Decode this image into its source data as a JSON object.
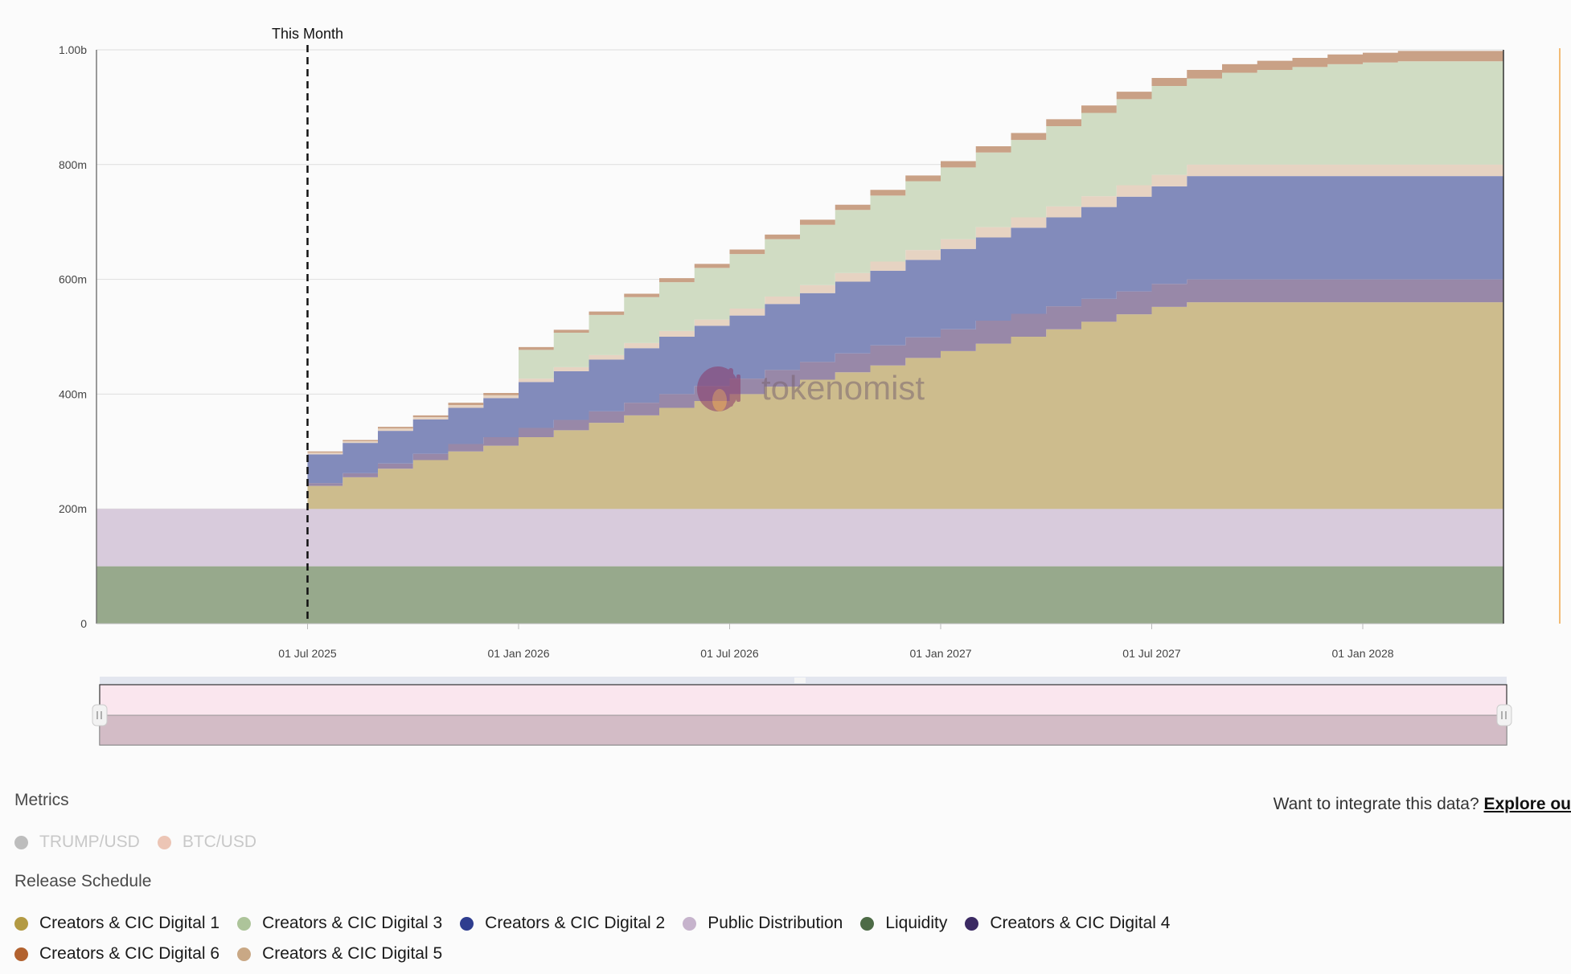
{
  "chart_data": {
    "type": "area",
    "stacked": true,
    "y_tick_labels": [
      "0",
      "200m",
      "400m",
      "600m",
      "800m",
      "1.00b"
    ],
    "ylim": [
      0,
      1000
    ],
    "x_tick_labels": [
      "01 Jul 2025",
      "01 Jan 2026",
      "01 Jul 2026",
      "01 Jan 2027",
      "01 Jul 2027",
      "01 Jan 2028"
    ],
    "annotation": "This Month",
    "annotation_index": 6,
    "months": [
      "2025-01",
      "2025-02",
      "2025-03",
      "2025-04",
      "2025-05",
      "2025-06",
      "2025-07",
      "2025-08",
      "2025-09",
      "2025-10",
      "2025-11",
      "2025-12",
      "2026-01",
      "2026-02",
      "2026-03",
      "2026-04",
      "2026-05",
      "2026-06",
      "2026-07",
      "2026-08",
      "2026-09",
      "2026-10",
      "2026-11",
      "2026-12",
      "2027-01",
      "2027-02",
      "2027-03",
      "2027-04",
      "2027-05",
      "2027-06",
      "2027-07",
      "2027-08",
      "2027-09",
      "2027-10",
      "2027-11",
      "2027-12",
      "2028-01",
      "2028-02",
      "2028-03",
      "2028-04"
    ],
    "series": [
      {
        "name": "Liquidity",
        "color": "#97a98c",
        "values": [
          100,
          100,
          100,
          100,
          100,
          100,
          100,
          100,
          100,
          100,
          100,
          100,
          100,
          100,
          100,
          100,
          100,
          100,
          100,
          100,
          100,
          100,
          100,
          100,
          100,
          100,
          100,
          100,
          100,
          100,
          100,
          100,
          100,
          100,
          100,
          100,
          100,
          100,
          100,
          100
        ]
      },
      {
        "name": "Public Distribution",
        "color": "#d8cbdc",
        "values": [
          100,
          100,
          100,
          100,
          100,
          100,
          100,
          100,
          100,
          100,
          100,
          100,
          100,
          100,
          100,
          100,
          100,
          100,
          100,
          100,
          100,
          100,
          100,
          100,
          100,
          100,
          100,
          100,
          100,
          100,
          100,
          100,
          100,
          100,
          100,
          100,
          100,
          100,
          100,
          100
        ]
      },
      {
        "name": "Creators & CIC Digital 1",
        "color": "#cdbc8d",
        "values": [
          0,
          0,
          0,
          0,
          0,
          0,
          40,
          55,
          70,
          85,
          100,
          110,
          125,
          137,
          150,
          163,
          176,
          188,
          200,
          213,
          225,
          238,
          250,
          263,
          275,
          288,
          300,
          313,
          326,
          339,
          352,
          360,
          360,
          360,
          360,
          360,
          360,
          360,
          360,
          360
        ]
      },
      {
        "name": "Creators & CIC Digital 4",
        "color": "#9888a8",
        "values": [
          0,
          0,
          0,
          0,
          0,
          0,
          5,
          7,
          9,
          11,
          13,
          15,
          16,
          18,
          20,
          22,
          24,
          26,
          27,
          29,
          31,
          33,
          35,
          36,
          38,
          40,
          40,
          40,
          40,
          40,
          40,
          40,
          40,
          40,
          40,
          40,
          40,
          40,
          40,
          40
        ]
      },
      {
        "name": "Creators & CIC Digital 2",
        "color": "#828bbb",
        "values": [
          0,
          0,
          0,
          0,
          0,
          0,
          50,
          53,
          57,
          60,
          63,
          68,
          80,
          85,
          90,
          95,
          100,
          105,
          110,
          115,
          120,
          125,
          130,
          135,
          140,
          145,
          150,
          155,
          160,
          165,
          170,
          180,
          180,
          180,
          180,
          180,
          180,
          180,
          180,
          180
        ]
      },
      {
        "name": "Creators & CIC Digital 5",
        "color": "#e6d3c2",
        "values": [
          0,
          0,
          0,
          0,
          0,
          0,
          3,
          3,
          4,
          4,
          5,
          5,
          6,
          7,
          8,
          9,
          10,
          11,
          12,
          13,
          14,
          15,
          16,
          17,
          17,
          18,
          18,
          19,
          19,
          20,
          20,
          20,
          20,
          20,
          20,
          20,
          20,
          20,
          20,
          20
        ]
      },
      {
        "name": "Creators & CIC Digital 3",
        "color": "#d0dcc3",
        "values": [
          0,
          0,
          0,
          0,
          0,
          0,
          0,
          0,
          0,
          0,
          0,
          0,
          50,
          60,
          70,
          80,
          85,
          90,
          95,
          100,
          105,
          110,
          115,
          120,
          125,
          130,
          135,
          140,
          145,
          150,
          155,
          150,
          160,
          165,
          170,
          175,
          178,
          180,
          180,
          180
        ]
      },
      {
        "name": "Creators & CIC Digital 6",
        "color": "#c9a186",
        "values": [
          0,
          0,
          0,
          0,
          0,
          0,
          2,
          2,
          3,
          3,
          4,
          4,
          5,
          5,
          6,
          6,
          7,
          7,
          8,
          8,
          9,
          9,
          10,
          10,
          11,
          11,
          12,
          12,
          13,
          13,
          14,
          15,
          15,
          16,
          16,
          17,
          17,
          18,
          18,
          18
        ]
      }
    ],
    "watermark": "tokenomist"
  },
  "legend": {
    "metrics_title": "Metrics",
    "metrics_items": [
      {
        "label": "TRUMP/USD",
        "color": "#bdbdbd"
      },
      {
        "label": "BTC/USD",
        "color": "#ecc5b5"
      }
    ],
    "release_title": "Release Schedule",
    "release_row1": [
      {
        "label": "Creators & CIC Digital 1",
        "color": "#b39a43"
      },
      {
        "label": "Creators & CIC Digital 3",
        "color": "#adc49a"
      },
      {
        "label": "Creators & CIC Digital 2",
        "color": "#2e3d8f"
      },
      {
        "label": "Public Distribution",
        "color": "#c6b3cc"
      },
      {
        "label": "Liquidity",
        "color": "#4d6b46"
      },
      {
        "label": "Creators & CIC Digital 4",
        "color": "#3b2a63"
      }
    ],
    "release_row2": [
      {
        "label": "Creators & CIC Digital 6",
        "color": "#b2622f"
      },
      {
        "label": "Creators & CIC Digital 5",
        "color": "#c9a885"
      }
    ],
    "integrate_text": "Want to integrate this data?",
    "integrate_link": "Explore ou"
  }
}
